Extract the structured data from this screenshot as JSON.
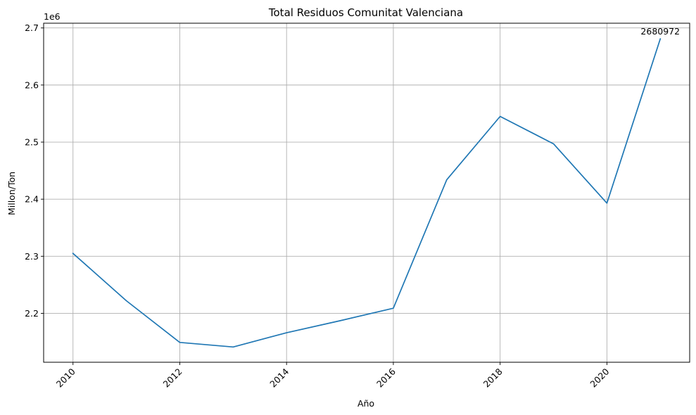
{
  "chart_data": {
    "type": "line",
    "title": "Total Residuos Comunitat Valenciana",
    "xlabel": "Año",
    "ylabel": "Millon/Ton",
    "y_offset_label": "1e6",
    "x": [
      2010,
      2011,
      2012,
      2013,
      2014,
      2015,
      2016,
      2017,
      2018,
      2019,
      2020,
      2021
    ],
    "series": [
      {
        "name": "",
        "color": "#1f77b4",
        "values": [
          2305000,
          2222000,
          2149000,
          2141000,
          2166000,
          2187000,
          2209000,
          2434000,
          2545000,
          2497000,
          2393000,
          2680972
        ]
      }
    ],
    "xlim": [
      2009.45,
      2021.55
    ],
    "ylim": [
      2.1143,
      2.7083
    ],
    "xticks": [
      2010,
      2012,
      2014,
      2016,
      2018,
      2020
    ],
    "xtick_labels": [
      "2010",
      "2012",
      "2014",
      "2016",
      "2018",
      "2020"
    ],
    "xtick_rotation": 45,
    "yticks": [
      2.2,
      2.3,
      2.4,
      2.5,
      2.6,
      2.7
    ],
    "ytick_labels": [
      "2.2",
      "2.3",
      "2.4",
      "2.5",
      "2.6",
      "2.7"
    ],
    "y_scale": 1000000,
    "grid": true,
    "annotations": [
      {
        "x": 2021,
        "y": 2680972,
        "text": "2680972"
      }
    ]
  }
}
